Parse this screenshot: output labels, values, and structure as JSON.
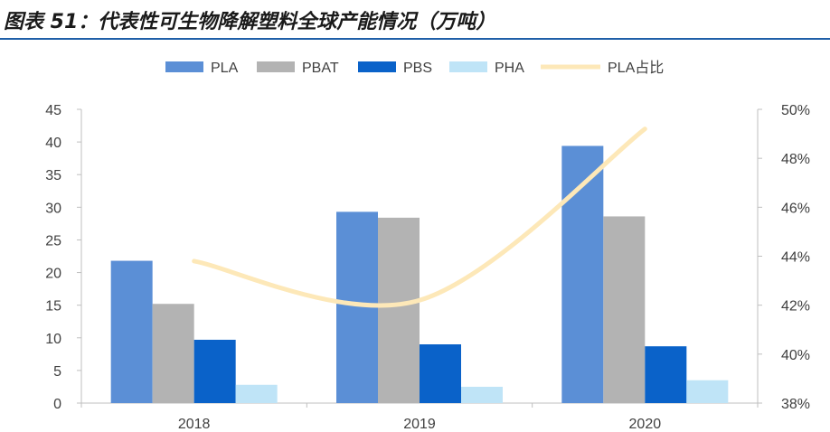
{
  "figure": {
    "title": "图表 51：代表性可生物降解塑料全球产能情况（万吨）"
  },
  "chart_data": {
    "type": "bar",
    "categories": [
      "2018",
      "2019",
      "2020"
    ],
    "series": [
      {
        "name": "PLA",
        "kind": "bar",
        "axis": "left",
        "color": "#5b8fd6",
        "values": [
          21.8,
          29.3,
          39.4
        ]
      },
      {
        "name": "PBAT",
        "kind": "bar",
        "axis": "left",
        "color": "#b3b3b3",
        "values": [
          15.2,
          28.4,
          28.6
        ]
      },
      {
        "name": "PBS",
        "kind": "bar",
        "axis": "left",
        "color": "#0a62c9",
        "values": [
          9.7,
          9.0,
          8.7
        ]
      },
      {
        "name": "PHA",
        "kind": "bar",
        "axis": "left",
        "color": "#bfe4f7",
        "values": [
          2.8,
          2.5,
          3.5
        ]
      },
      {
        "name": "PLA占比",
        "kind": "line",
        "axis": "right",
        "color": "#fde8b8",
        "values": [
          43.8,
          42.2,
          49.2
        ]
      }
    ],
    "y_left": {
      "min": 0,
      "max": 45,
      "step": 5,
      "ticks": [
        "0",
        "5",
        "10",
        "15",
        "20",
        "25",
        "30",
        "35",
        "40",
        "45"
      ]
    },
    "y_right": {
      "min": 38,
      "max": 50,
      "step": 2,
      "ticks": [
        "38%",
        "40%",
        "42%",
        "44%",
        "46%",
        "48%",
        "50%"
      ]
    },
    "xlabel": "",
    "ylabel": "",
    "grid": false,
    "legend": "top"
  }
}
